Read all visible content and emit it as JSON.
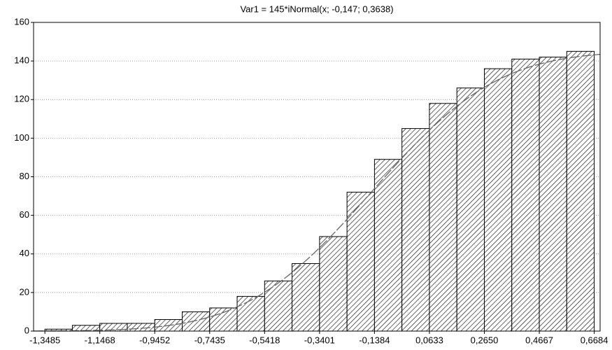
{
  "chart_data": {
    "type": "histogram",
    "title": "Var1 = 145*iNormal(x; -0,147; 0,3638)",
    "bins": [
      -1.3485,
      -1.24765,
      -1.1468,
      -1.04595,
      -0.9452,
      -0.84435,
      -0.7435,
      -0.64265,
      -0.5418,
      -0.44095,
      -0.3401,
      -0.23925,
      -0.1384,
      -0.03755,
      0.0633,
      0.16415,
      0.265,
      0.36585,
      0.4667,
      0.56755,
      0.6684
    ],
    "values": [
      1,
      3,
      4,
      4,
      6,
      10,
      12,
      18,
      26,
      35,
      49,
      72,
      89,
      105,
      118,
      126,
      136,
      141,
      142,
      145
    ],
    "color": "#000000",
    "fit": {
      "scale": 145,
      "mean": -0.147,
      "sd": 0.3638,
      "color": "#666666"
    },
    "xlim": [
      -1.39,
      0.69
    ],
    "xticks": [
      {
        "value": -1.3485,
        "label": "-1,3485"
      },
      {
        "value": -1.1468,
        "label": "-1,1468"
      },
      {
        "value": -0.9452,
        "label": "-0,9452"
      },
      {
        "value": -0.7435,
        "label": "-0,7435"
      },
      {
        "value": -0.5418,
        "label": "-0,5418"
      },
      {
        "value": -0.3401,
        "label": "-0,3401"
      },
      {
        "value": -0.1384,
        "label": "-0,1384"
      },
      {
        "value": 0.0633,
        "label": "0,0633"
      },
      {
        "value": 0.265,
        "label": "0,2650"
      },
      {
        "value": 0.4667,
        "label": "0,4667"
      },
      {
        "value": 0.6684,
        "label": "0,6684"
      }
    ],
    "ylim": [
      0,
      160
    ],
    "yticks": [
      0,
      20,
      40,
      60,
      80,
      100,
      120,
      140,
      160
    ],
    "grid": true
  }
}
